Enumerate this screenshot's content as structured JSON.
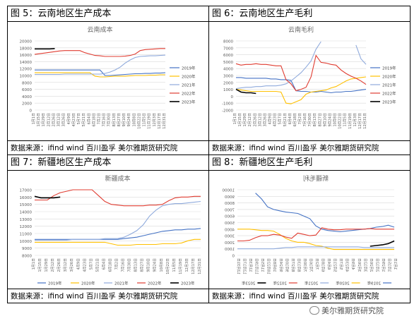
{
  "panels": [
    {
      "title": "图 5：云南地区生产成本",
      "source": "数据来源：ifind wind  百川盈孚  美尔雅期货研究院",
      "chart_data": {
        "type": "line",
        "title": "云南成本",
        "x": [
          "1月1日",
          "1月15日",
          "1月29日",
          "2月12日",
          "2月26日",
          "3月12日",
          "3月26日",
          "4月9日",
          "4月23日",
          "5月7日",
          "5月21日",
          "6月4日",
          "6月18日",
          "7月2日",
          "7月16日",
          "7月30日",
          "8月13日",
          "8月27日",
          "9月10日",
          "9月24日",
          "10月8日",
          "10月22日",
          "11月5日",
          "11月19日",
          "12月3日",
          "12月17日",
          "12月31日"
        ],
        "ylim": [
          0,
          20000
        ],
        "yticks": [
          0,
          2000,
          4000,
          6000,
          8000,
          10000,
          12000,
          14000,
          16000,
          18000,
          20000
        ],
        "legend_position": "right",
        "series": [
          {
            "name": "2019年",
            "color": "#4472c4",
            "values": [
              11600,
              11600,
              11600,
              11600,
              11600,
              11600,
              11600,
              11600,
              11600,
              11600,
              11600,
              11600,
              11600,
              11600,
              10000,
              10000,
              10100,
              10200,
              10300,
              10400,
              10500,
              10500,
              10600,
              10600,
              10700,
              10700,
              10800
            ]
          },
          {
            "name": "2020年",
            "color": "#ffc000",
            "values": [
              10800,
              10800,
              10800,
              10800,
              10800,
              10800,
              10800,
              10800,
              10800,
              10800,
              10800,
              10800,
              9800,
              9600,
              9600,
              9700,
              9800,
              9800,
              9800,
              9900,
              10000,
              10000,
              10000,
              10100,
              10100,
              10200,
              10200
            ]
          },
          {
            "name": "2021年",
            "color": "#8faadc",
            "values": [
              10300,
              10300,
              10300,
              10300,
              10300,
              10300,
              10400,
              10400,
              10400,
              10400,
              10400,
              10400,
              10400,
              10400,
              10600,
              11000,
              11600,
              12400,
              13600,
              14500,
              15200,
              15500,
              15600,
              15700,
              15700,
              15800,
              15900
            ]
          },
          {
            "name": "2022年",
            "color": "#e03c31",
            "values": [
              16100,
              16300,
              16500,
              16700,
              16900,
              17100,
              17200,
              17200,
              17200,
              17200,
              16600,
              16200,
              15800,
              15700,
              15500,
              15500,
              15500,
              15500,
              15600,
              15800,
              16200,
              17200,
              17500,
              17600,
              17700,
              17800,
              17800
            ]
          },
          {
            "name": "2023年",
            "color": "#000000",
            "values": [
              17700,
              17700,
              17700,
              17700,
              17800,
              null,
              null,
              null,
              null,
              null,
              null,
              null,
              null,
              null,
              null,
              null,
              null,
              null,
              null,
              null,
              null,
              null,
              null,
              null,
              null,
              null,
              null
            ]
          }
        ]
      }
    },
    {
      "title": "图 6：云南地区生产毛利",
      "source": "数据来源：ifind wind  百川盈孚  美尔雅期货研究院",
      "chart_data": {
        "type": "line",
        "title": "云南毛利",
        "x": [
          "1月1日",
          "1月15日",
          "1月29日",
          "2月12日",
          "2月26日",
          "3月12日",
          "3月26日",
          "4月9日",
          "4月23日",
          "5月7日",
          "5月21日",
          "6月4日",
          "6月18日",
          "7月2日",
          "7月16日",
          "7月30日",
          "8月13日",
          "8月27日",
          "9月10日",
          "9月24日",
          "10月8日",
          "10月22日",
          "11月5日",
          "11月19日",
          "12月3日",
          "12月17日",
          "12月31日"
        ],
        "ylim": [
          -2000,
          8000
        ],
        "yticks": [
          -2000,
          -1000,
          0,
          1000,
          2000,
          3000,
          4000,
          5000,
          6000,
          7000,
          8000
        ],
        "legend_position": "right",
        "series": [
          {
            "name": "2019年",
            "color": "#4472c4",
            "values": [
              2700,
              2700,
              2600,
              2600,
              2600,
              2600,
              2600,
              2500,
              2500,
              2400,
              2400,
              2300,
              800,
              700,
              700,
              600,
              600,
              700,
              600,
              500,
              600,
              600,
              700,
              700,
              800,
              900,
              1000
            ]
          },
          {
            "name": "2020年",
            "color": "#ffc000",
            "values": [
              1000,
              900,
              800,
              700,
              700,
              700,
              700,
              700,
              700,
              600,
              -1000,
              -1100,
              -800,
              -500,
              300,
              600,
              700,
              800,
              900,
              1200,
              1400,
              1800,
              2200,
              2500,
              2600,
              2700,
              2800
            ]
          },
          {
            "name": "2021年",
            "color": "#8faadc",
            "values": [
              1100,
              1200,
              1300,
              1300,
              1400,
              1400,
              1500,
              1500,
              1500,
              1600,
              1800,
              2200,
              2800,
              3400,
              4200,
              5100,
              6800,
              7900,
              null,
              null,
              null,
              null,
              null,
              null,
              7400,
              5400,
              4600
            ]
          },
          {
            "name": "2022年",
            "color": "#e03c31",
            "values": [
              4700,
              4500,
              4600,
              4600,
              4700,
              4600,
              4600,
              4500,
              4400,
              4400,
              2400,
              1800,
              800,
              1000,
              1300,
              2800,
              5900,
              4900,
              4800,
              4600,
              4500,
              3800,
              3300,
              2900,
              2600,
              2200,
              1700
            ]
          },
          {
            "name": "2023年",
            "color": "#000000",
            "values": [
              1000,
              600,
              500,
              500,
              400,
              null,
              null,
              null,
              null,
              null,
              null,
              null,
              null,
              null,
              null,
              null,
              null,
              null,
              null,
              null,
              null,
              null,
              null,
              null,
              null,
              null,
              null
            ]
          }
        ]
      }
    },
    {
      "title": "图 7：新疆地区生产成本",
      "source": "数据来源：ifind wind  百川盈孚  美尔雅期货研究院",
      "chart_data": {
        "type": "line",
        "title": "新疆成本",
        "x": [
          "1月1日",
          "1月15日",
          "1月29日",
          "2月12日",
          "2月26日",
          "3月12日",
          "3月26日",
          "4月9日",
          "4月23日",
          "5月7日",
          "5月21日",
          "6月4日",
          "6月18日",
          "7月2日",
          "7月16日",
          "7月30日",
          "8月13日",
          "8月27日",
          "9月10日",
          "9月24日",
          "10月8日",
          "10月22日",
          "11月5日",
          "11月19日",
          "12月3日",
          "12月17日",
          "12月31日"
        ],
        "ylim": [
          8000,
          17000
        ],
        "yticks": [
          8000,
          9000,
          10000,
          11000,
          12000,
          13000,
          14000,
          15000,
          16000,
          17000
        ],
        "legend_position": "bottom",
        "series": [
          {
            "name": "2019年",
            "color": "#4472c4",
            "values": [
              10200,
              10200,
              10200,
              10200,
              10200,
              10200,
              10200,
              10200,
              10200,
              10200,
              10200,
              10200,
              10200,
              10200,
              10300,
              10400,
              10500,
              10700,
              10900,
              11100,
              11300,
              11400,
              11500,
              11500,
              11600,
              11600,
              11700
            ]
          },
          {
            "name": "2020年",
            "color": "#ffc000",
            "values": [
              9800,
              9800,
              9800,
              9800,
              9800,
              9800,
              9800,
              9800,
              9800,
              9800,
              9800,
              9800,
              9600,
              9400,
              9400,
              9400,
              9500,
              9500,
              9500,
              9500,
              9600,
              9600,
              9600,
              9700,
              10000,
              10200,
              10200
            ]
          },
          {
            "name": "2021年",
            "color": "#8faadc",
            "values": [
              10100,
              10100,
              10100,
              10100,
              10100,
              10100,
              10200,
              10200,
              10200,
              10200,
              10200,
              10300,
              10300,
              10300,
              10500,
              10900,
              11400,
              12200,
              13400,
              14200,
              14800,
              15000,
              15100,
              15100,
              15200,
              15300,
              15400
            ]
          },
          {
            "name": "2022年",
            "color": "#e03c31",
            "values": [
              15600,
              15600,
              15600,
              16200,
              16600,
              16800,
              17000,
              17000,
              17000,
              17000,
              16200,
              15400,
              15000,
              14900,
              14800,
              14800,
              14800,
              14800,
              14900,
              14900,
              15000,
              15500,
              15900,
              16000,
              16000,
              16100,
              16100
            ]
          },
          {
            "name": "2023年",
            "color": "#000000",
            "values": [
              16100,
              15900,
              15900,
              15900,
              16000,
              null,
              null,
              null,
              null,
              null,
              null,
              null,
              null,
              null,
              null,
              null,
              null,
              null,
              null,
              null,
              null,
              null,
              null,
              null,
              null,
              null,
              null
            ]
          }
        ]
      }
    },
    {
      "title": "图 8：新疆地区生产毛利",
      "source": "数据来源：ifind wind  百川盈孚  美尔雅期货研究院",
      "chart_data": {
        "type": "line",
        "title": "新疆毛利",
        "mirrored": true,
        "x": [
          "1月1日",
          "1月15日",
          "1月29日",
          "2月12日",
          "2月26日",
          "3月12日",
          "3月26日",
          "4月9日",
          "4月23日",
          "5月7日",
          "5月21日",
          "6月4日",
          "6月18日",
          "7月2日",
          "7月16日",
          "7月30日",
          "8月13日",
          "8月27日",
          "9月10日",
          "9月24日",
          "10月8日",
          "10月22日",
          "11月5日",
          "11月19日",
          "12月3日",
          "12月17日",
          "12月31日"
        ],
        "ylim": [
          0,
          10000
        ],
        "yticks": [
          0,
          1000,
          2000,
          3000,
          4000,
          5000,
          6000,
          7000,
          8000,
          9000,
          10000
        ],
        "legend_position": "bottom",
        "series": [
          {
            "name": "2019年",
            "color": "#4472c4",
            "values": [
              4300,
              4600,
              4400,
              4300,
              4100,
              4000,
              3900,
              3800,
              3700,
              3600,
              3700,
              3800,
              4000,
              4500,
              5600,
              6000,
              6400,
              6500,
              6600,
              6800,
              7000,
              7400,
              8600,
              9500,
              null,
              null,
              null
            ]
          },
          {
            "name": "2020年",
            "color": "#ffc000",
            "values": [
              900,
              900,
              900,
              900,
              900,
              900,
              900,
              900,
              900,
              900,
              900,
              1100,
              1400,
              1500,
              1800,
              2000,
              2000,
              2200,
              2600,
              3200,
              3700,
              3800,
              3800,
              3900,
              4000,
              4000,
              4000
            ]
          },
          {
            "name": "2021年",
            "color": "#8faadc",
            "values": [
              1200,
              1200,
              1200,
              1200,
              1200,
              1200,
              1300,
              1300,
              1300,
              1300,
              1300,
              1300,
              1300,
              1300,
              1300,
              1300,
              1300,
              1200,
              1200,
              1100,
              1000,
              1000,
              1000,
              1000,
              1000,
              1000,
              1000
            ]
          },
          {
            "name": "2022年",
            "color": "#e03c31",
            "values": [
              4000,
              4000,
              4000,
              4000,
              4100,
              4000,
              4000,
              4000,
              4000,
              3900,
              3900,
              4000,
              4200,
              3100,
              3000,
              3200,
              3400,
              2600,
              2800,
              3100,
              3200,
              3000,
              3000,
              2700,
              2300,
              2200,
              2200
            ]
          },
          {
            "name": "2023年",
            "color": "#000000",
            "values": [
              2200,
              1800,
              1600,
              1500,
              1400,
              null,
              null,
              null,
              null,
              null,
              null,
              null,
              null,
              null,
              null,
              null,
              null,
              null,
              null,
              null,
              null,
              null,
              null,
              null,
              null,
              null,
              null
            ]
          }
        ]
      }
    }
  ],
  "watermark": {
    "text": "美尔雅期货研究院",
    "icon": "wechat-icon"
  }
}
